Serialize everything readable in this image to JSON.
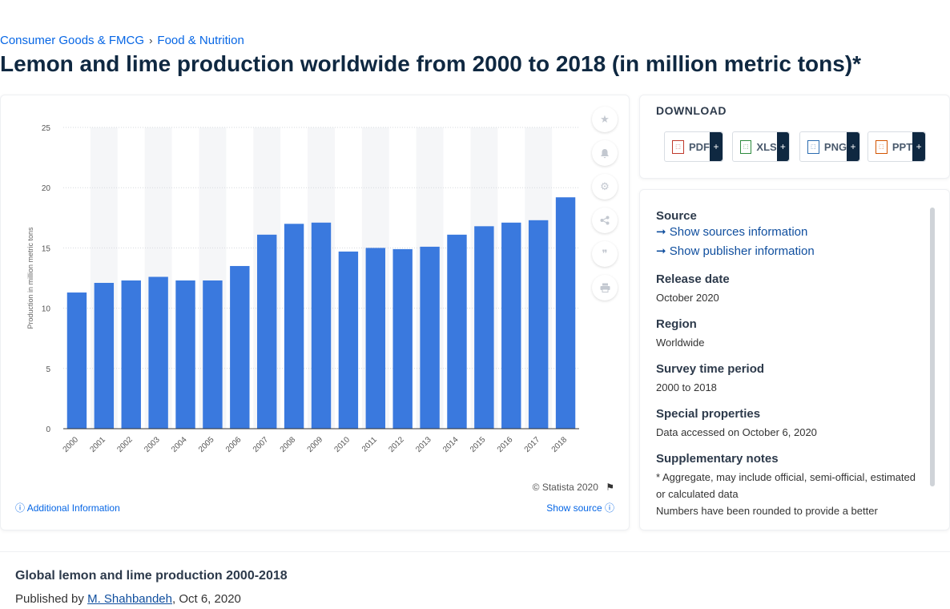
{
  "breadcrumb": {
    "item1": "Consumer Goods & FMCG",
    "sep": "›",
    "item2": "Food & Nutrition"
  },
  "page_title": "Lemon and lime production worldwide from 2000 to 2018 (in million metric tons)*",
  "chart_data": {
    "type": "bar",
    "categories": [
      "2000",
      "2001",
      "2002",
      "2003",
      "2004",
      "2005",
      "2006",
      "2007",
      "2008",
      "2009",
      "2010",
      "2011",
      "2012",
      "2013",
      "2014",
      "2015",
      "2016",
      "2017",
      "2018"
    ],
    "values": [
      11.3,
      12.1,
      12.3,
      12.6,
      12.3,
      12.3,
      13.5,
      16.1,
      17.0,
      17.1,
      14.7,
      15.0,
      14.9,
      15.1,
      16.1,
      16.8,
      17.1,
      17.3,
      19.2
    ],
    "title": "",
    "xlabel": "",
    "ylabel": "Production in million metric tons",
    "ylim": [
      0,
      25
    ],
    "yticks": [
      0,
      5,
      10,
      15,
      20,
      25
    ],
    "grid": true,
    "bar_color": "#3a79de",
    "stripe_color": "#f5f6f8"
  },
  "chart_footer": {
    "copyright": "© Statista 2020",
    "additional_info": "Additional Information",
    "show_source": "Show source"
  },
  "tools": [
    "star-icon",
    "bell-icon",
    "gear-icon",
    "share-icon",
    "quote-icon",
    "print-icon"
  ],
  "download": {
    "title": "DOWNLOAD",
    "buttons": [
      {
        "label": "PDF",
        "plus": "+",
        "color": "#c0392b"
      },
      {
        "label": "XLS",
        "plus": "+",
        "color": "#2e8b3e"
      },
      {
        "label": "PNG",
        "plus": "+",
        "color": "#2b6cb0"
      },
      {
        "label": "PPT",
        "plus": "+",
        "color": "#d35400"
      }
    ]
  },
  "meta": {
    "source_h": "Source",
    "source_link1": "Show sources information",
    "source_link2": "Show publisher information",
    "release_h": "Release date",
    "release_v": "October 2020",
    "region_h": "Region",
    "region_v": "Worldwide",
    "period_h": "Survey time period",
    "period_v": "2000 to 2018",
    "special_h": "Special properties",
    "special_v": "Data accessed on October 6, 2020",
    "notes_h": "Supplementary notes",
    "notes_v1": "* Aggregate, may include official, semi-official, estimated or calculated data",
    "notes_v2": "Numbers have been rounded to provide a better"
  },
  "bottom": {
    "title": "Global lemon and lime production 2000-2018",
    "published_by": "Published by",
    "author": "M. Shahbandeh",
    "date": ", Oct 6, 2020"
  }
}
